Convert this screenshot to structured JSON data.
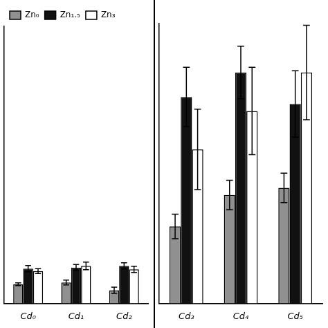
{
  "chart_data": [
    {
      "type": "bar",
      "categories": [
        "Cd₀",
        "Cd₁",
        "Cd₂"
      ],
      "series": [
        {
          "name": "Zn₀",
          "color": "#909090",
          "values": [
            0.055,
            0.06,
            0.038
          ],
          "errors": [
            0.004,
            0.007,
            0.009
          ]
        },
        {
          "name": "Zn₁.₅",
          "color": "#111111",
          "values": [
            0.1,
            0.103,
            0.108
          ],
          "errors": [
            0.009,
            0.009,
            0.009
          ]
        },
        {
          "name": "Zn₃",
          "color": "#ffffff",
          "values": [
            0.093,
            0.108,
            0.098
          ],
          "errors": [
            0.007,
            0.011,
            0.009
          ]
        }
      ],
      "ylim": [
        0,
        0.8
      ],
      "grid": false,
      "legend": "upper left",
      "tick_labels": "x"
    },
    {
      "type": "bar",
      "categories": [
        "Cd₃",
        "Cd₄",
        "Cd₅"
      ],
      "series": [
        {
          "name": "Zn₀",
          "color": "#909090",
          "values": [
            0.22,
            0.31,
            0.33
          ],
          "errors": [
            0.035,
            0.042,
            0.042
          ]
        },
        {
          "name": "Zn₁.₅",
          "color": "#111111",
          "values": [
            0.59,
            0.66,
            0.57
          ],
          "errors": [
            0.085,
            0.075,
            0.095
          ]
        },
        {
          "name": "Zn₃",
          "color": "#ffffff",
          "values": [
            0.44,
            0.55,
            0.66
          ],
          "errors": [
            0.115,
            0.125,
            0.135
          ]
        }
      ],
      "ylim": [
        0,
        0.8
      ],
      "grid": false,
      "tick_labels": "x"
    }
  ]
}
